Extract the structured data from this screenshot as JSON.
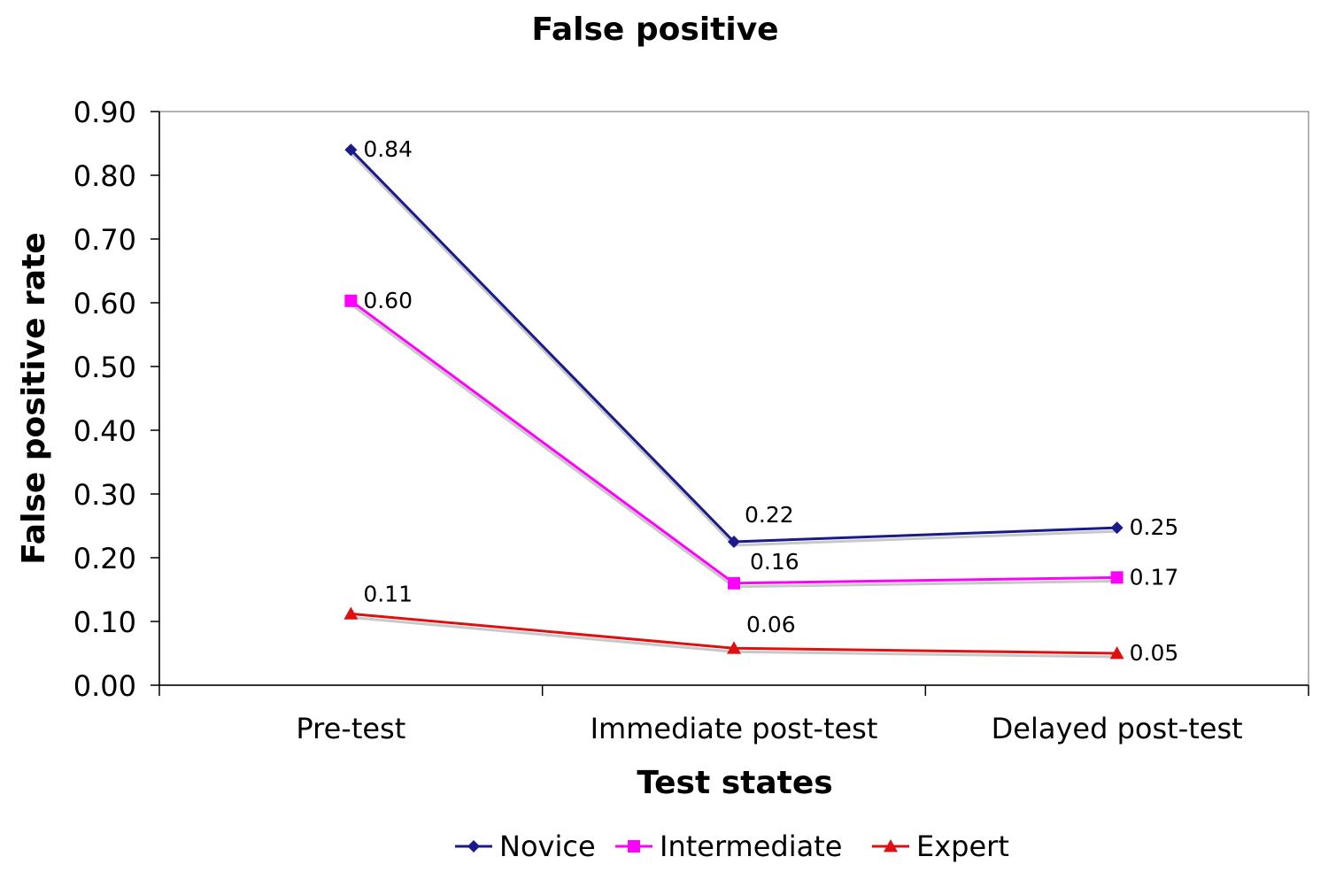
{
  "chart_data": {
    "type": "line",
    "title": "False positive",
    "xlabel": "Test states",
    "ylabel": "False positive rate",
    "categories": [
      "Pre-test",
      "Immediate post-test",
      "Delayed post-test"
    ],
    "ylim": [
      0,
      0.9
    ],
    "yticks": [
      "0.00",
      "0.10",
      "0.20",
      "0.30",
      "0.40",
      "0.50",
      "0.60",
      "0.70",
      "0.80",
      "0.90"
    ],
    "grid": false,
    "legend_position": "bottom",
    "series": [
      {
        "name": "Novice",
        "color": "#1a1a8c",
        "marker": "diamond",
        "values": [
          0.84,
          0.225,
          0.247
        ],
        "labels": [
          "0.84",
          "0.22",
          "0.25"
        ]
      },
      {
        "name": "Intermediate",
        "color": "#ff00ff",
        "marker": "square",
        "values": [
          0.603,
          0.16,
          0.169
        ],
        "labels": [
          "0.60",
          "0.16",
          "0.17"
        ]
      },
      {
        "name": "Expert",
        "color": "#dd1111",
        "marker": "triangle",
        "values": [
          0.112,
          0.058,
          0.05
        ],
        "labels": [
          "0.11",
          "0.06",
          "0.05"
        ]
      }
    ]
  }
}
